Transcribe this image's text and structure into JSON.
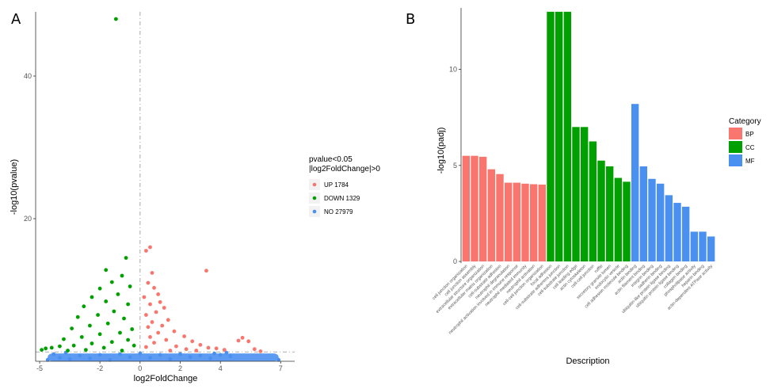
{
  "panels": {
    "a_label": "A",
    "b_label": "B"
  },
  "chart_data": [
    {
      "type": "scatter",
      "title": "",
      "xlabel": "log2FoldChange",
      "ylabel": "-log10(pvalue)",
      "xlim": [
        -5.2,
        7.7
      ],
      "ylim": [
        0,
        49
      ],
      "xticks": [
        -5,
        -2,
        0,
        2,
        4,
        7
      ],
      "yticks": [
        20,
        40
      ],
      "thresholds": {
        "pvalue_line_y": 1.3,
        "fc_line_x": 0
      },
      "legend_title": [
        "pvalue<0.05",
        "|log2FoldChange|>0"
      ],
      "series": [
        {
          "name": "UP 1784",
          "color": "#f8766d",
          "points": [
            [
              0.3,
              15.5
            ],
            [
              0.5,
              16.0
            ],
            [
              0.6,
              12.4
            ],
            [
              0.4,
              11.0
            ],
            [
              0.7,
              10.3
            ],
            [
              0.9,
              9.4
            ],
            [
              0.2,
              9.0
            ],
            [
              1.0,
              8.3
            ],
            [
              0.5,
              8.0
            ],
            [
              1.2,
              7.5
            ],
            [
              0.8,
              6.9
            ],
            [
              0.3,
              6.5
            ],
            [
              1.4,
              5.8
            ],
            [
              0.6,
              5.5
            ],
            [
              1.1,
              5.0
            ],
            [
              0.4,
              4.8
            ],
            [
              1.7,
              4.2
            ],
            [
              0.9,
              4.0
            ],
            [
              2.2,
              3.5
            ],
            [
              0.5,
              3.4
            ],
            [
              1.3,
              3.0
            ],
            [
              2.6,
              2.8
            ],
            [
              0.7,
              2.6
            ],
            [
              3.0,
              2.3
            ],
            [
              1.8,
              2.1
            ],
            [
              0.3,
              2.0
            ],
            [
              3.4,
              1.9
            ],
            [
              2.3,
              1.7
            ],
            [
              3.3,
              12.7
            ],
            [
              4.9,
              2.9
            ],
            [
              5.1,
              3.3
            ],
            [
              5.4,
              2.8
            ],
            [
              5.7,
              1.7
            ],
            [
              6.0,
              1.4
            ],
            [
              3.8,
              1.8
            ],
            [
              4.2,
              1.6
            ],
            [
              1.5,
              1.5
            ],
            [
              2.8,
              1.5
            ]
          ]
        },
        {
          "name": "DOWN 1329",
          "color": "#00a000",
          "points": [
            [
              -1.2,
              48.0
            ],
            [
              -0.7,
              14.5
            ],
            [
              -1.7,
              12.8
            ],
            [
              -0.9,
              12.0
            ],
            [
              -1.4,
              11.1
            ],
            [
              -2.0,
              10.2
            ],
            [
              -0.5,
              10.5
            ],
            [
              -2.4,
              9.0
            ],
            [
              -1.1,
              9.4
            ],
            [
              -1.7,
              8.4
            ],
            [
              -2.8,
              7.7
            ],
            [
              -0.6,
              8.0
            ],
            [
              -1.3,
              7.0
            ],
            [
              -2.1,
              6.5
            ],
            [
              -3.1,
              6.2
            ],
            [
              -0.8,
              6.0
            ],
            [
              -1.6,
              5.3
            ],
            [
              -2.5,
              5.0
            ],
            [
              -3.4,
              4.6
            ],
            [
              -0.4,
              4.5
            ],
            [
              -1.0,
              4.0
            ],
            [
              -2.0,
              3.8
            ],
            [
              -2.9,
              3.4
            ],
            [
              -3.8,
              3.1
            ],
            [
              -0.6,
              3.0
            ],
            [
              -1.4,
              2.7
            ],
            [
              -2.4,
              2.5
            ],
            [
              -3.3,
              2.2
            ],
            [
              -4.0,
              2.1
            ],
            [
              -4.4,
              1.9
            ],
            [
              -4.7,
              1.8
            ],
            [
              -4.9,
              1.6
            ],
            [
              -0.3,
              2.2
            ],
            [
              -1.8,
              1.9
            ],
            [
              -2.7,
              1.6
            ],
            [
              -3.6,
              1.5
            ],
            [
              -0.9,
              1.5
            ]
          ]
        },
        {
          "name": "NO 27979",
          "color": "#4a90f0",
          "points": [
            [
              -4.6,
              0.2
            ],
            [
              -4.0,
              0.5
            ],
            [
              -3.5,
              0.3
            ],
            [
              -3.0,
              0.8
            ],
            [
              -2.5,
              0.4
            ],
            [
              -2.0,
              0.9
            ],
            [
              -1.5,
              0.2
            ],
            [
              -1.0,
              1.0
            ],
            [
              -0.5,
              0.6
            ],
            [
              0.0,
              1.1
            ],
            [
              0.5,
              0.5
            ],
            [
              1.0,
              0.9
            ],
            [
              1.5,
              0.3
            ],
            [
              2.0,
              1.0
            ],
            [
              2.5,
              0.6
            ],
            [
              3.0,
              0.8
            ],
            [
              3.5,
              0.4
            ],
            [
              4.0,
              0.9
            ],
            [
              4.5,
              0.7
            ],
            [
              6.9,
              0.2
            ],
            [
              -4.3,
              1.0
            ],
            [
              -3.7,
              1.2
            ],
            [
              3.7,
              1.1
            ],
            [
              4.3,
              1.2
            ]
          ]
        }
      ]
    },
    {
      "type": "bar",
      "title": "",
      "xlabel": "Description",
      "ylabel": "-log10(padj)",
      "ylim": [
        0,
        13.2
      ],
      "yticks": [
        0,
        5,
        10
      ],
      "legend_title": "Category",
      "series": [
        {
          "name": "BP",
          "color": "#f8766d"
        },
        {
          "name": "CC",
          "color": "#00a000"
        },
        {
          "name": "MF",
          "color": "#4a90f0"
        }
      ],
      "bars": [
        {
          "label": "cell junction organization",
          "value": 5.5,
          "category": "BP"
        },
        {
          "label": "cell junction assembly",
          "value": 5.5,
          "category": "BP"
        },
        {
          "label": "extracellular structure organization",
          "value": 5.45,
          "category": "BP"
        },
        {
          "label": "extracellular matrix organization",
          "value": 4.8,
          "category": "BP"
        },
        {
          "label": "cell-substrate adhesion",
          "value": 4.55,
          "category": "BP"
        },
        {
          "label": "neutrophil degranulation",
          "value": 4.1,
          "category": "BP"
        },
        {
          "label": "neutrophil activation involved in immune response",
          "value": 4.1,
          "category": "BP"
        },
        {
          "label": "neutrophil mediated immunity",
          "value": 4.05,
          "category": "BP"
        },
        {
          "label": "neutrophil activation",
          "value": 4.02,
          "category": "BP"
        },
        {
          "label": "cell-cell junction organization",
          "value": 4.0,
          "category": "BP"
        },
        {
          "label": "focal adhesion",
          "value": 13.0,
          "category": "CC"
        },
        {
          "label": "cell-substrate adherens junction",
          "value": 13.0,
          "category": "CC"
        },
        {
          "label": "cell-substrate junction",
          "value": 13.0,
          "category": "CC"
        },
        {
          "label": "cell leading edge",
          "value": 7.0,
          "category": "CC"
        },
        {
          "label": "actin cytoskeleton",
          "value": 7.0,
          "category": "CC"
        },
        {
          "label": "cell-cell junction",
          "value": 6.25,
          "category": "CC"
        },
        {
          "label": "ruffle",
          "value": 5.25,
          "category": "CC"
        },
        {
          "label": "secretory granule lumen",
          "value": 4.95,
          "category": "CC"
        },
        {
          "label": "endocytic vesicle",
          "value": 4.35,
          "category": "CC"
        },
        {
          "label": "cell adhesion molecule binding",
          "value": 4.15,
          "category": "CC"
        },
        {
          "label": "actin binding",
          "value": 8.2,
          "category": "MF"
        },
        {
          "label": "actin filament binding",
          "value": 4.95,
          "category": "MF"
        },
        {
          "label": "integrin binding",
          "value": 4.3,
          "category": "MF"
        },
        {
          "label": "cadherin binding",
          "value": 4.05,
          "category": "MF"
        },
        {
          "label": "ubiquitin-like protein ligase binding",
          "value": 3.45,
          "category": "MF"
        },
        {
          "label": "ubiquitin protein ligase binding",
          "value": 3.05,
          "category": "MF"
        },
        {
          "label": "collagen binding",
          "value": 2.85,
          "category": "MF"
        },
        {
          "label": "phospholipase activity",
          "value": 1.55,
          "category": "MF"
        },
        {
          "label": "heparin binding",
          "value": 1.55,
          "category": "MF"
        },
        {
          "label": "actin-dependent ATPase activity",
          "value": 1.3,
          "category": "MF"
        }
      ]
    }
  ]
}
